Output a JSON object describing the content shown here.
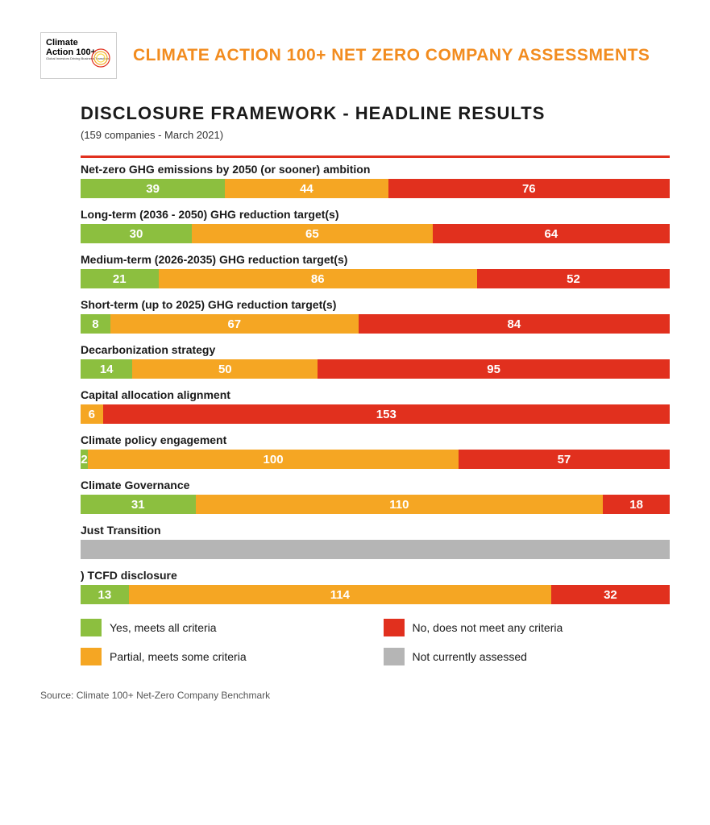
{
  "colors": {
    "green": "#8cbf3f",
    "orange": "#f5a623",
    "red": "#e1301e",
    "grey": "#b5b5b5",
    "title_orange": "#f28c1f"
  },
  "header": {
    "logo_line1": "Climate",
    "logo_line2": "Action",
    "logo_line3": "100+",
    "logo_sub": "Global Investors Driving Business Transition",
    "title": "CLIMATE ACTION 100+ NET ZERO COMPANY ASSESSMENTS"
  },
  "subtitle": "DISCLOSURE FRAMEWORK - HEADLINE RESULTS",
  "note": "(159 companies - March 2021)",
  "total": 159,
  "rows": [
    {
      "label": "Net-zero GHG emissions by 2050 (or sooner) ambition",
      "segments": [
        {
          "value": 39,
          "colorKey": "green"
        },
        {
          "value": 44,
          "colorKey": "orange"
        },
        {
          "value": 76,
          "colorKey": "red"
        }
      ]
    },
    {
      "label": "Long-term (2036 - 2050) GHG reduction target(s)",
      "segments": [
        {
          "value": 30,
          "colorKey": "green"
        },
        {
          "value": 65,
          "colorKey": "orange"
        },
        {
          "value": 64,
          "colorKey": "red"
        }
      ]
    },
    {
      "label": "Medium-term (2026-2035) GHG reduction target(s)",
      "segments": [
        {
          "value": 21,
          "colorKey": "green"
        },
        {
          "value": 86,
          "colorKey": "orange"
        },
        {
          "value": 52,
          "colorKey": "red"
        }
      ]
    },
    {
      "label": "Short-term (up to 2025) GHG reduction target(s)",
      "segments": [
        {
          "value": 8,
          "colorKey": "green"
        },
        {
          "value": 67,
          "colorKey": "orange"
        },
        {
          "value": 84,
          "colorKey": "red"
        }
      ]
    },
    {
      "label": "Decarbonization strategy",
      "segments": [
        {
          "value": 14,
          "colorKey": "green"
        },
        {
          "value": 50,
          "colorKey": "orange"
        },
        {
          "value": 95,
          "colorKey": "red"
        }
      ]
    },
    {
      "label": "Capital allocation alignment",
      "segments": [
        {
          "value": 6,
          "colorKey": "orange"
        },
        {
          "value": 153,
          "colorKey": "red"
        }
      ]
    },
    {
      "label": "Climate policy engagement",
      "segments": [
        {
          "value": 2,
          "colorKey": "green"
        },
        {
          "value": 100,
          "colorKey": "orange"
        },
        {
          "value": 57,
          "colorKey": "red"
        }
      ]
    },
    {
      "label": "Climate Governance",
      "segments": [
        {
          "value": 31,
          "colorKey": "green"
        },
        {
          "value": 110,
          "colorKey": "orange"
        },
        {
          "value": 18,
          "colorKey": "red"
        }
      ]
    },
    {
      "label": "Just Transition",
      "segments": [
        {
          "value": 159,
          "colorKey": "grey",
          "hideLabel": true
        }
      ]
    },
    {
      "label": ") TCFD disclosure",
      "segments": [
        {
          "value": 13,
          "colorKey": "green"
        },
        {
          "value": 114,
          "colorKey": "orange"
        },
        {
          "value": 32,
          "colorKey": "red"
        }
      ]
    }
  ],
  "legend": [
    {
      "colorKey": "green",
      "label": "Yes, meets all criteria"
    },
    {
      "colorKey": "red",
      "label": "No, does not meet any criteria"
    },
    {
      "colorKey": "orange",
      "label": "Partial, meets some criteria"
    },
    {
      "colorKey": "grey",
      "label": "Not currently assessed"
    }
  ],
  "source": "Source: Climate 100+ Net-Zero Company Benchmark"
}
